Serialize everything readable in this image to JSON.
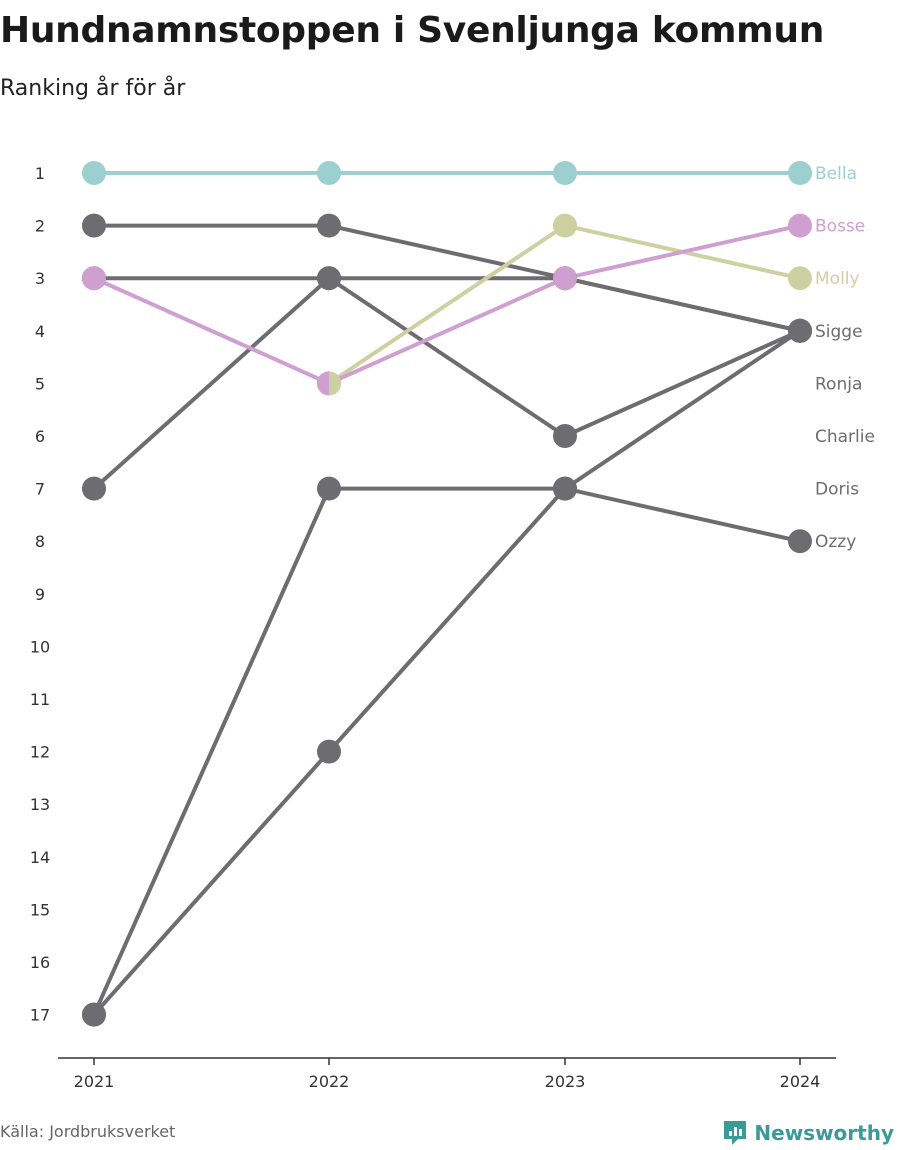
{
  "header": {
    "title": "Hundnamnstoppen i Svenljunga kommun",
    "subtitle": "Ranking år för år"
  },
  "footer": {
    "source": "Källa: Jordbruksverket",
    "brand": "Newsworthy"
  },
  "colors": {
    "bella": "#9ccfcf",
    "bosse": "#cf9fd1",
    "molly": "#cdd0a0",
    "grey": "#6d6c70",
    "axis": "#333333",
    "brand": "#3a9a9a"
  },
  "chart_data": {
    "type": "line",
    "x": [
      "2021",
      "2022",
      "2023",
      "2024"
    ],
    "ylim": [
      1,
      17
    ],
    "y_reversed": true,
    "yticks": [
      1,
      2,
      3,
      4,
      5,
      6,
      7,
      8,
      9,
      10,
      11,
      12,
      13,
      14,
      15,
      16,
      17
    ],
    "grid": false,
    "series": [
      {
        "name": "Bella",
        "values": [
          1,
          1,
          1,
          1
        ],
        "color": "#9ccfcf",
        "highlight": true
      },
      {
        "name": "Bosse",
        "values": [
          3,
          5,
          3,
          2
        ],
        "color": "#cf9fd1",
        "highlight": true
      },
      {
        "name": "Molly",
        "values": [
          null,
          5,
          2,
          3
        ],
        "color": "#cdd0a0",
        "highlight": true
      },
      {
        "name": "Sigge",
        "values": [
          2,
          2,
          3,
          4
        ],
        "color": "#6d6c70",
        "highlight": false
      },
      {
        "name": "Ronja",
        "values": [
          3,
          3,
          3,
          4
        ],
        "color": "#6d6c70",
        "highlight": false
      },
      {
        "name": "Charlie",
        "values": [
          7,
          3,
          6,
          4
        ],
        "color": "#6d6c70",
        "highlight": false
      },
      {
        "name": "Doris",
        "values": [
          17,
          12,
          7,
          4
        ],
        "color": "#6d6c70",
        "highlight": false
      },
      {
        "name": "Ozzy",
        "values": [
          17,
          7,
          7,
          8
        ],
        "color": "#6d6c70",
        "highlight": false
      }
    ],
    "end_labels": [
      {
        "text": "Bella",
        "rank": 1,
        "color": "#9ccfcf"
      },
      {
        "text": "Bosse",
        "rank": 2,
        "color": "#cf9fd1"
      },
      {
        "text": "Molly",
        "rank": 3,
        "color": "#cdd0a0"
      },
      {
        "text": "Sigge",
        "rank": 4,
        "color": "#6d6c70"
      },
      {
        "text": "Ronja",
        "rank": 5,
        "color": "#6d6c70"
      },
      {
        "text": "Charlie",
        "rank": 6,
        "color": "#6d6c70"
      },
      {
        "text": "Doris",
        "rank": 7,
        "color": "#6d6c70"
      },
      {
        "text": "Ozzy",
        "rank": 8,
        "color": "#6d6c70"
      }
    ]
  }
}
